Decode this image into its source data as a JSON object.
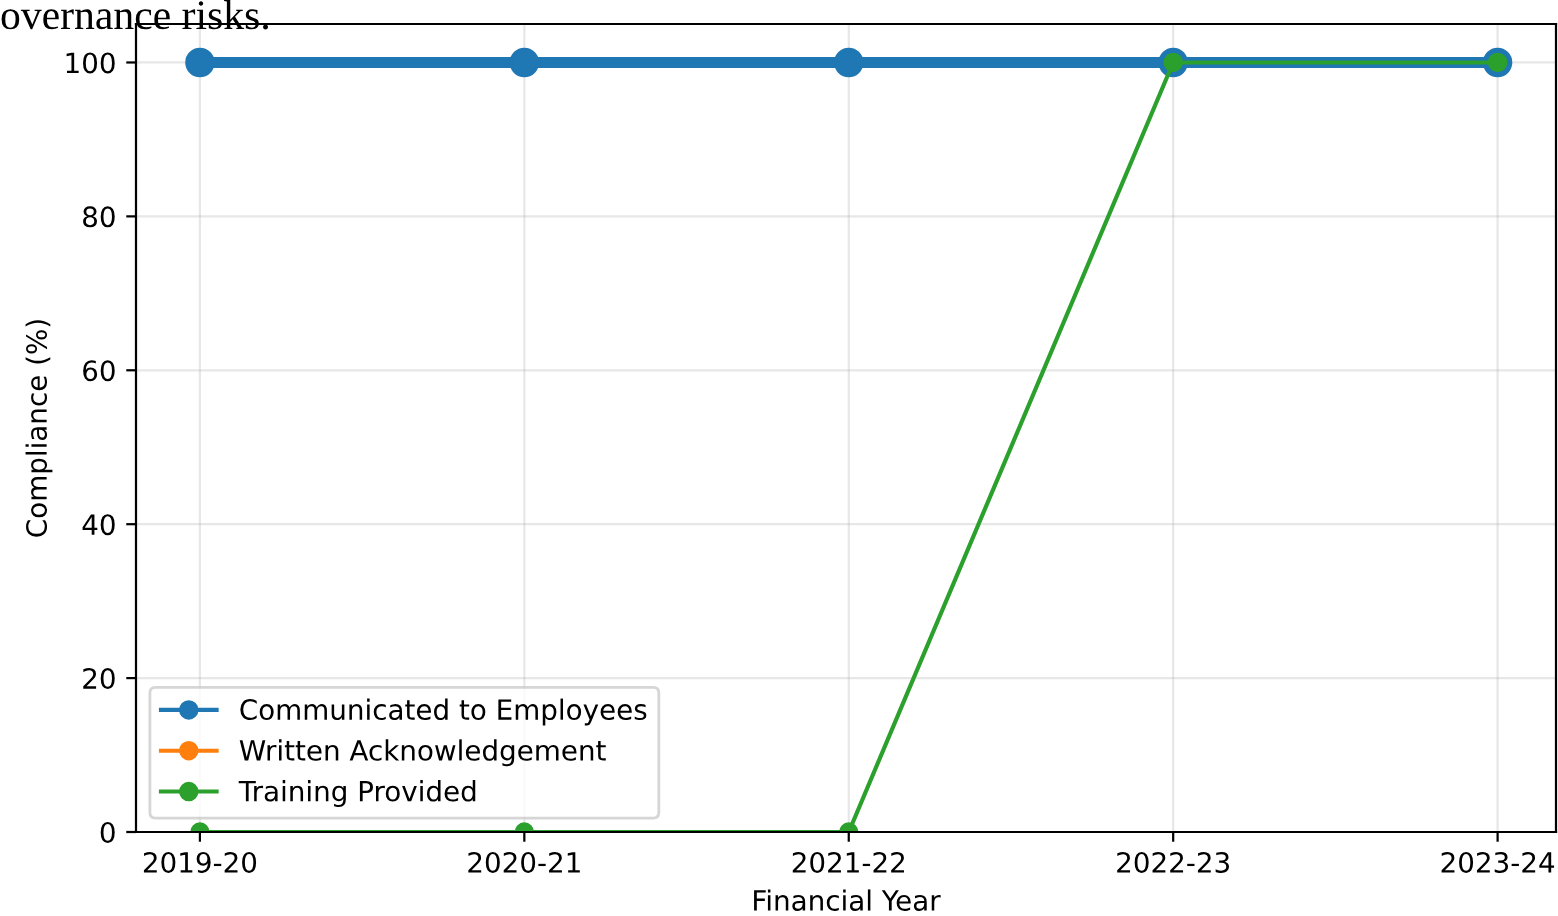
{
  "chart_data": {
    "type": "line",
    "title": "overnance risks.",
    "categories": [
      "2019-20",
      "2020-21",
      "2021-22",
      "2022-23",
      "2023-24"
    ],
    "series": [
      {
        "name": "Communicated to Employees",
        "color": "#1f77b4",
        "values": [
          100,
          100,
          100,
          100,
          100
        ]
      },
      {
        "name": "Written Acknowledgement",
        "color": "#ff7f0e",
        "values": [
          null,
          null,
          null,
          null,
          null
        ]
      },
      {
        "name": "Training Provided",
        "color": "#2ca02c",
        "values": [
          0,
          0,
          0,
          100,
          100
        ]
      }
    ],
    "xlabel": "Financial Year",
    "ylabel": "Compliance (%)",
    "ylim": [
      0,
      105
    ],
    "yticks": [
      0,
      20,
      40,
      60,
      80,
      100
    ],
    "grid": true,
    "legend": "bottom left",
    "marker": "circle",
    "line_style": "solid"
  }
}
